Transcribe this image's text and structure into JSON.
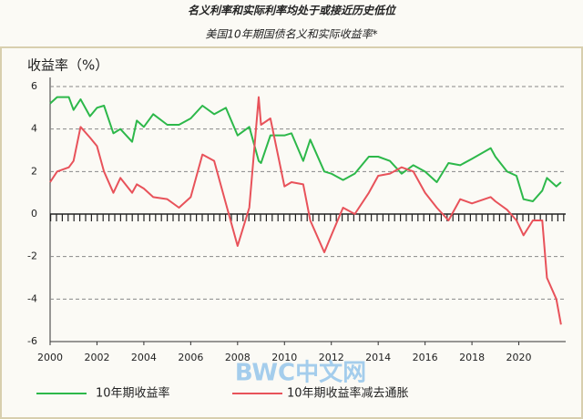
{
  "chart_data": {
    "type": "line",
    "title": "名义利率和实际利率均处于或接近历史低位",
    "subtitle": "美国10年期国债名义和实际收益率*",
    "y_label": "收益率（%）",
    "watermark": "BWC中文网",
    "x": [
      2000,
      2000.3,
      2000.8,
      2001,
      2001.3,
      2001.7,
      2002,
      2002.3,
      2002.7,
      2003,
      2003.5,
      2003.7,
      2004,
      2004.4,
      2005,
      2005.5,
      2006,
      2006.5,
      2007,
      2007.5,
      2008,
      2008.5,
      2008.9,
      2009,
      2009.4,
      2010,
      2010.3,
      2010.8,
      2011.1,
      2011.7,
      2012,
      2012.5,
      2013,
      2013.6,
      2014,
      2014.5,
      2015,
      2015.5,
      2016,
      2016.5,
      2017,
      2017.5,
      2018,
      2018.8,
      2019,
      2019.5,
      2019.9,
      2020.2,
      2020.6,
      2021,
      2021.2,
      2021.6,
      2021.8
    ],
    "series": [
      {
        "name": "10年期收益率",
        "color": "#2db84a",
        "values": [
          5.2,
          5.5,
          5.5,
          4.9,
          5.4,
          4.6,
          5.0,
          5.1,
          3.8,
          4.0,
          3.4,
          4.4,
          4.1,
          4.7,
          4.2,
          4.2,
          4.5,
          5.1,
          4.7,
          5.0,
          3.7,
          4.1,
          2.5,
          2.4,
          3.7,
          3.7,
          3.8,
          2.5,
          3.5,
          2.0,
          1.9,
          1.6,
          1.9,
          2.7,
          2.7,
          2.5,
          1.9,
          2.3,
          2.0,
          1.5,
          2.4,
          2.3,
          2.6,
          3.1,
          2.7,
          2.0,
          1.8,
          0.7,
          0.6,
          1.1,
          1.7,
          1.3,
          1.5
        ]
      },
      {
        "name": "10年期收益率减去通胀",
        "color": "#e8525a",
        "values": [
          1.5,
          2.0,
          2.2,
          2.5,
          4.1,
          3.6,
          3.2,
          2.0,
          1.0,
          1.7,
          1.0,
          1.4,
          1.2,
          0.8,
          0.7,
          0.3,
          0.8,
          2.8,
          2.5,
          0.5,
          -1.5,
          0.3,
          5.5,
          4.2,
          4.5,
          1.3,
          1.5,
          1.4,
          -0.3,
          -1.8,
          -1.0,
          0.3,
          0.0,
          1.0,
          1.8,
          1.9,
          2.2,
          2.0,
          1.0,
          0.3,
          -0.3,
          0.7,
          0.5,
          0.8,
          0.6,
          0.2,
          -0.3,
          -1.0,
          -0.3,
          -0.3,
          -3.0,
          -4.0,
          -5.2
        ]
      }
    ],
    "xlim": [
      2000,
      2022
    ],
    "xticks": [
      2000,
      2002,
      2004,
      2006,
      2008,
      2010,
      2012,
      2014,
      2016,
      2018,
      2020
    ],
    "ylim": [
      -6,
      6
    ],
    "yticks": [
      -6,
      -4,
      -2,
      0,
      2,
      4,
      6
    ],
    "grid": true
  }
}
